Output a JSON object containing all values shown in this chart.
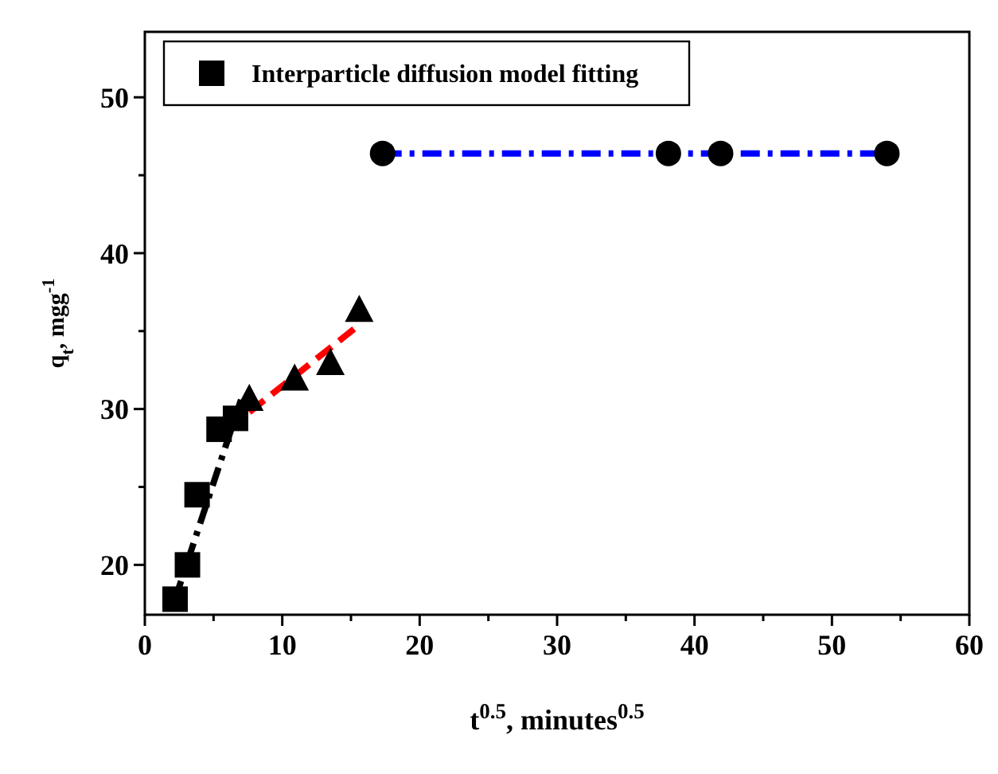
{
  "chart_data": {
    "type": "scatter",
    "xlabel": "t$^{0.5}$, minutes$^{0.5}$",
    "ylabel": "q$_{t}$, mgg$^{-1}$",
    "xlim": [
      0,
      60
    ],
    "ylim": [
      16.8,
      54.2
    ],
    "xticks": [
      0,
      {
        "value": 5,
        "label": null
      },
      10,
      {
        "value": 15,
        "label": null
      },
      20,
      {
        "value": 25,
        "label": null
      },
      30,
      {
        "value": 35,
        "label": null
      },
      40,
      {
        "value": 45,
        "label": null
      },
      50,
      {
        "value": 55,
        "label": null
      },
      60
    ],
    "yticks": [
      20,
      {
        "value": 25,
        "label": null
      },
      30,
      {
        "value": 35,
        "label": null
      },
      40,
      {
        "value": 45,
        "label": null
      },
      50
    ],
    "grid": false,
    "legend": "top left",
    "series": [
      {
        "type": "line",
        "color": "#000000",
        "line_style": "dashdot",
        "marker": "none",
        "x": [
          2.2,
          7.0
        ],
        "values": [
          17.8,
          30.6
        ]
      },
      {
        "type": "line",
        "color": "#ff0000",
        "line_style": "dashed",
        "marker": "none",
        "x": [
          7.6,
          15.6
        ],
        "values": [
          29.8,
          35.4
        ]
      },
      {
        "type": "line",
        "color": "#0000ff",
        "line_style": "dashdot",
        "marker": "none",
        "x": [
          17.3,
          54.0
        ],
        "values": [
          46.4,
          46.4
        ]
      },
      {
        "name": "Interparticle diffusion model fitting",
        "color": "#000000",
        "marker": "square",
        "x": [
          2.2,
          3.1,
          3.8,
          5.4,
          6.6
        ],
        "values": [
          17.8,
          20.0,
          24.5,
          28.7,
          29.4
        ]
      },
      {
        "color": "#000000",
        "marker": "triangle",
        "x": [
          7.6,
          10.9,
          13.5,
          15.6
        ],
        "values": [
          30.6,
          31.9,
          32.9,
          36.3
        ]
      },
      {
        "color": "#000000",
        "marker": "circle",
        "x": [
          17.3,
          38.1,
          41.9,
          54.0
        ],
        "values": [
          46.4,
          46.4,
          46.4,
          46.4
        ]
      }
    ]
  }
}
